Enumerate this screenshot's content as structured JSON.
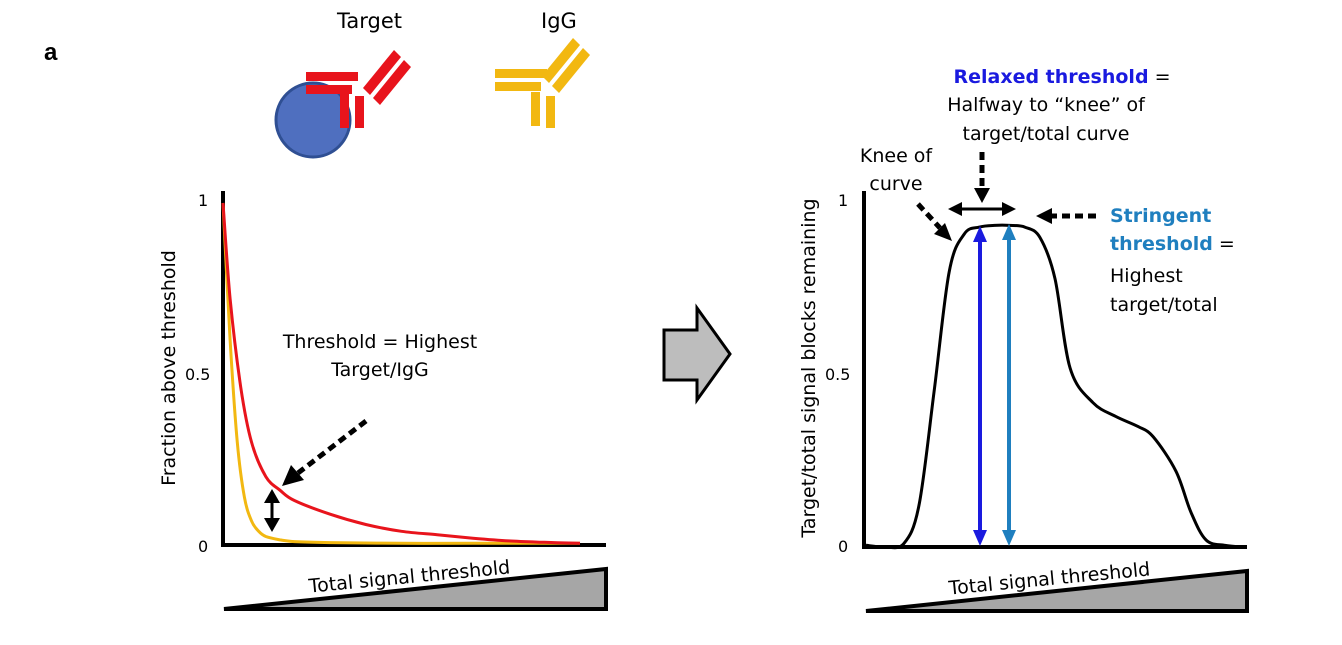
{
  "panel_label": "a",
  "antibody_labels": {
    "target": "Target",
    "igg": "IgG"
  },
  "colors": {
    "target": "#e8141c",
    "igg": "#f2b811",
    "bead_fill": "#4f6fbf",
    "bead_stroke": "#2f4f93",
    "relaxed": "#1a1adf",
    "stringent": "#1f7fbf",
    "wedge": "#a6a6a6",
    "arrow_fill": "#bdbdbd"
  },
  "left_chart": {
    "ylabel": "Fraction above threshold",
    "yticks": [
      "0",
      "0.5",
      "1"
    ],
    "xlabel": "Total signal threshold",
    "annotation_lines": [
      "Threshold = Highest",
      "Target/IgG"
    ]
  },
  "right_chart": {
    "ylabel": "Target/total signal blocks remaining",
    "yticks": [
      "0",
      "0.5",
      "1"
    ],
    "xlabel": "Total signal threshold",
    "knee_lines": [
      "Knee of",
      "curve"
    ],
    "relaxed": {
      "bold": "Relaxed threshold",
      "suffix": " =",
      "lines": [
        "Halfway to “knee” of",
        "target/total curve"
      ]
    },
    "stringent": {
      "bold_lines": [
        "Stringent",
        "threshold"
      ],
      "suffix": " =",
      "lines": [
        "Highest",
        "target/total"
      ]
    }
  },
  "chart_data": [
    {
      "type": "line",
      "xlabel": "Total signal threshold",
      "ylabel": "Fraction above threshold",
      "ylim": [
        0,
        1
      ],
      "series": [
        {
          "name": "Target",
          "x": [
            0,
            0.02,
            0.05,
            0.08,
            0.12,
            0.16,
            0.2,
            0.3,
            0.4,
            0.5,
            0.6,
            0.7,
            0.8,
            0.9,
            1.0
          ],
          "values": [
            1.0,
            0.72,
            0.46,
            0.3,
            0.2,
            0.16,
            0.13,
            0.09,
            0.06,
            0.04,
            0.03,
            0.02,
            0.012,
            0.008,
            0.005
          ]
        },
        {
          "name": "IgG",
          "x": [
            0,
            0.02,
            0.04,
            0.06,
            0.08,
            0.1,
            0.12,
            0.16,
            0.2,
            0.3,
            0.5,
            0.7,
            1.0
          ],
          "values": [
            1.0,
            0.6,
            0.3,
            0.14,
            0.07,
            0.04,
            0.025,
            0.015,
            0.01,
            0.007,
            0.005,
            0.005,
            0.005
          ]
        }
      ]
    },
    {
      "type": "line",
      "xlabel": "Total signal threshold",
      "ylabel": "Target/total signal blocks remaining",
      "ylim": [
        0,
        1
      ],
      "series": [
        {
          "x": [
            0,
            0.05,
            0.1,
            0.14,
            0.18,
            0.22,
            0.26,
            0.3,
            0.34,
            0.38,
            0.42,
            0.46,
            0.5,
            0.54,
            0.6,
            0.66,
            0.72,
            0.76,
            0.82,
            0.86,
            0.9,
            0.95,
            1.0
          ],
          "values": [
            0.005,
            0.0,
            0.01,
            0.12,
            0.45,
            0.8,
            0.91,
            0.93,
            0.935,
            0.935,
            0.93,
            0.9,
            0.78,
            0.52,
            0.42,
            0.38,
            0.35,
            0.32,
            0.22,
            0.1,
            0.02,
            0.005,
            0.0
          ]
        }
      ]
    }
  ]
}
